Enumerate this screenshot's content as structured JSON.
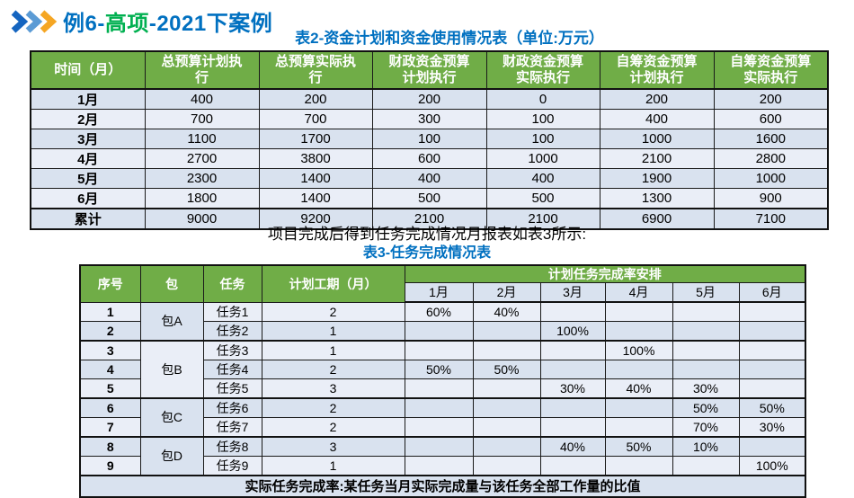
{
  "header": {
    "title_part1": "例6-",
    "title_part2": "高项",
    "title_part3": "-2021下案例",
    "chevron_colors": [
      "#1565C0",
      "#5B9BD5",
      "#F5A623"
    ]
  },
  "table2": {
    "title": "表2-资金计划和资金使用情况表（单位:万元）",
    "headers": [
      "时间（月）",
      "总预算计划执行",
      "总预算实际执行",
      "财政资金预算计划执行",
      "财政资金预算实际执行",
      "自筹资金预算计划执行",
      "自筹资金预算实际执行"
    ],
    "rows": [
      {
        "label": "1月",
        "values": [
          "400",
          "200",
          "200",
          "0",
          "200",
          "200"
        ]
      },
      {
        "label": "2月",
        "values": [
          "700",
          "700",
          "300",
          "100",
          "400",
          "600"
        ]
      },
      {
        "label": "3月",
        "values": [
          "1100",
          "1700",
          "100",
          "100",
          "1000",
          "1600"
        ]
      },
      {
        "label": "4月",
        "values": [
          "2700",
          "3800",
          "600",
          "1000",
          "2100",
          "2800"
        ]
      },
      {
        "label": "5月",
        "values": [
          "2300",
          "1400",
          "400",
          "400",
          "1900",
          "1000"
        ]
      },
      {
        "label": "6月",
        "values": [
          "1800",
          "1400",
          "500",
          "500",
          "1300",
          "900"
        ]
      },
      {
        "label": "累计",
        "values": [
          "9000",
          "9200",
          "2100",
          "2100",
          "6900",
          "7100"
        ]
      }
    ]
  },
  "intro": {
    "text": "项目完成后得到任务完成情况月报表如表3所示:"
  },
  "table3": {
    "title": "表3-任务完成情况表",
    "col_headers": {
      "seq": "序号",
      "pkg": "包",
      "task": "任务",
      "duration": "计划工期（月）",
      "plan": "计划任务完成率安排"
    },
    "months": [
      "1月",
      "2月",
      "3月",
      "4月",
      "5月",
      "6月"
    ],
    "packages": [
      {
        "name": "包A",
        "rowspan": 2,
        "shade": "dark"
      },
      {
        "name": "包B",
        "rowspan": 3,
        "shade": "light"
      },
      {
        "name": "包C",
        "rowspan": 2,
        "shade": "dark"
      },
      {
        "name": "包D",
        "rowspan": 2,
        "shade": "dark"
      }
    ],
    "rows": [
      {
        "seq": "1",
        "task": "任务1",
        "duration": "2",
        "pct": [
          "60%",
          "40%",
          "",
          "",
          "",
          ""
        ]
      },
      {
        "seq": "2",
        "task": "任务2",
        "duration": "1",
        "pct": [
          "",
          "",
          "100%",
          "",
          "",
          ""
        ]
      },
      {
        "seq": "3",
        "task": "任务3",
        "duration": "1",
        "pct": [
          "",
          "",
          "",
          "100%",
          "",
          ""
        ]
      },
      {
        "seq": "4",
        "task": "任务4",
        "duration": "2",
        "pct": [
          "50%",
          "50%",
          "",
          "",
          "",
          ""
        ]
      },
      {
        "seq": "5",
        "task": "任务5",
        "duration": "3",
        "pct": [
          "",
          "",
          "30%",
          "40%",
          "30%",
          ""
        ]
      },
      {
        "seq": "6",
        "task": "任务6",
        "duration": "2",
        "pct": [
          "",
          "",
          "",
          "",
          "50%",
          "50%"
        ]
      },
      {
        "seq": "7",
        "task": "任务7",
        "duration": "2",
        "pct": [
          "",
          "",
          "",
          "",
          "70%",
          "30%"
        ]
      },
      {
        "seq": "8",
        "task": "任务8",
        "duration": "3",
        "pct": [
          "",
          "",
          "40%",
          "50%",
          "10%",
          ""
        ]
      },
      {
        "seq": "9",
        "task": "任务9",
        "duration": "1",
        "pct": [
          "",
          "",
          "",
          "",
          "",
          "100%"
        ]
      }
    ],
    "footer": "实际任务完成率:某任务当月实际完成量与该任务全部工作量的比值"
  },
  "colors": {
    "table_header_green": "#70AD47",
    "row_dark": "#D9E2EF",
    "row_light": "#EAEEF7",
    "title_blue": "#0070C0",
    "title_green": "#00B050"
  }
}
